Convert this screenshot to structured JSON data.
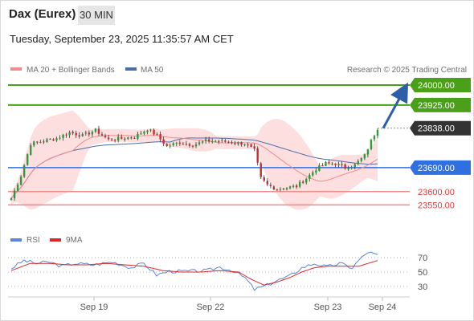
{
  "header": {
    "title": "Dax (Eurex)",
    "timeframe": "30 MIN",
    "datetime": "Tuesday, September 23, 2025 11:35:57 AM CET"
  },
  "legend": {
    "ma20_label": "MA 20 + Bollinger Bands",
    "ma50_label": "MA 50",
    "copyright": "Research © 2025 Trading Central"
  },
  "rsi_legend": {
    "rsi_label": "RSI",
    "ma_label": "9MA"
  },
  "colors": {
    "up_candle": "#2e9b3a",
    "down_candle": "#c62f2f",
    "resistance": "#4aa018",
    "last_price": "#333333",
    "pivot": "#2f6fe0",
    "support": "#f08f90",
    "ma20": "#f08c8c",
    "ma50": "#4b6ea9",
    "bands": "#fddcdc",
    "rsi": "#5b86d6",
    "rsi_ma": "#d62a2a",
    "arrow": "#2e5ea8"
  },
  "chart_data": [
    {
      "type": "candlestick",
      "title": "Dax (Eurex)",
      "timeframe": "30 MIN",
      "x_ticks": [
        "Sep 19",
        "Sep 22",
        "Sep 23",
        "Sep 24"
      ],
      "ylim": [
        23530,
        24030
      ],
      "levels": [
        {
          "value": 24000,
          "label": "24000.00",
          "kind": "target"
        },
        {
          "value": 23925,
          "label": "23925.00",
          "kind": "resistance"
        },
        {
          "value": 23838,
          "label": "23838.00",
          "kind": "last"
        },
        {
          "value": 23690,
          "label": "23690.00",
          "kind": "pivot"
        },
        {
          "value": 23600,
          "label": "23600.00",
          "kind": "support"
        },
        {
          "value": 23550,
          "label": "23550.00",
          "kind": "support"
        }
      ],
      "close_anchors": [
        [
          0,
          23575
        ],
        [
          3,
          23660
        ],
        [
          6,
          23780
        ],
        [
          10,
          23790
        ],
        [
          14,
          23800
        ],
        [
          18,
          23822
        ],
        [
          22,
          23810
        ],
        [
          26,
          23830
        ],
        [
          30,
          23795
        ],
        [
          34,
          23800
        ],
        [
          38,
          23805
        ],
        [
          42,
          23835
        ],
        [
          45,
          23810
        ],
        [
          48,
          23770
        ],
        [
          52,
          23785
        ],
        [
          56,
          23775
        ],
        [
          60,
          23790
        ],
        [
          64,
          23790
        ],
        [
          68,
          23785
        ],
        [
          72,
          23780
        ],
        [
          75,
          23755
        ],
        [
          77,
          23650
        ],
        [
          79,
          23625
        ],
        [
          82,
          23610
        ],
        [
          85,
          23615
        ],
        [
          88,
          23620
        ],
        [
          91,
          23650
        ],
        [
          94,
          23685
        ],
        [
          97,
          23705
        ],
        [
          100,
          23705
        ],
        [
          103,
          23690
        ],
        [
          106,
          23700
        ],
        [
          109,
          23735
        ],
        [
          111,
          23790
        ],
        [
          113,
          23838
        ]
      ],
      "series": [
        {
          "name": "MA 20 + Bollinger Bands",
          "kind": "moving_average",
          "period": 20
        },
        {
          "name": "MA 50",
          "kind": "moving_average",
          "period": 50
        }
      ]
    },
    {
      "type": "line",
      "title": "RSI",
      "ylim": [
        20,
        80
      ],
      "y_ticks": [
        70,
        50,
        30
      ],
      "series": [
        {
          "name": "RSI",
          "anchors": [
            [
              0,
              55
            ],
            [
              4,
              66
            ],
            [
              8,
              62
            ],
            [
              12,
              64
            ],
            [
              16,
              58
            ],
            [
              20,
              62
            ],
            [
              26,
              60
            ],
            [
              32,
              64
            ],
            [
              38,
              56
            ],
            [
              42,
              62
            ],
            [
              46,
              46
            ],
            [
              50,
              51
            ],
            [
              56,
              51
            ],
            [
              62,
              52
            ],
            [
              66,
              57
            ],
            [
              70,
              52
            ],
            [
              74,
              42
            ],
            [
              77,
              26
            ],
            [
              80,
              30
            ],
            [
              84,
              38
            ],
            [
              88,
              44
            ],
            [
              92,
              56
            ],
            [
              96,
              62
            ],
            [
              100,
              57
            ],
            [
              104,
              62
            ],
            [
              108,
              56
            ],
            [
              110,
              66
            ],
            [
              113,
              78
            ],
            [
              116,
              73
            ]
          ]
        },
        {
          "name": "9MA",
          "anchors": [
            [
              0,
              52
            ],
            [
              6,
              62
            ],
            [
              12,
              62
            ],
            [
              18,
              60
            ],
            [
              24,
              60
            ],
            [
              30,
              62
            ],
            [
              36,
              60
            ],
            [
              42,
              58
            ],
            [
              48,
              52
            ],
            [
              54,
              50
            ],
            [
              60,
              50
            ],
            [
              66,
              52
            ],
            [
              72,
              50
            ],
            [
              76,
              40
            ],
            [
              80,
              32
            ],
            [
              84,
              36
            ],
            [
              88,
              42
            ],
            [
              92,
              50
            ],
            [
              96,
              56
            ],
            [
              100,
              58
            ],
            [
              106,
              58
            ],
            [
              110,
              58
            ],
            [
              116,
              66
            ]
          ]
        }
      ]
    }
  ]
}
